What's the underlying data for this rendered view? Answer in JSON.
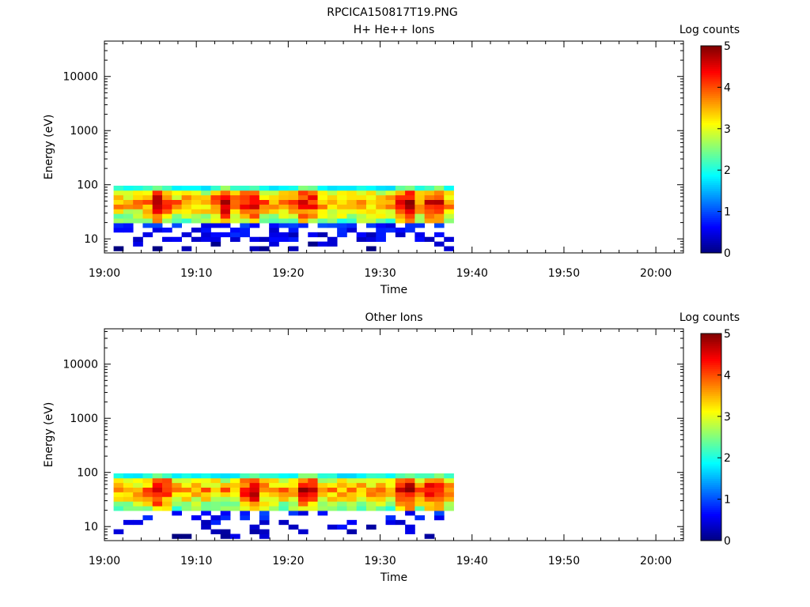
{
  "figure_title": "RPCICA150817T19.PNG",
  "chart_data": [
    {
      "type": "heatmap",
      "title": "H+ He++ Ions",
      "xlabel": "Time",
      "ylabel": "Energy (eV)",
      "x_ticks": [
        "19:00",
        "19:10",
        "19:20",
        "19:30",
        "19:40",
        "19:50",
        "20:00"
      ],
      "x_range": [
        "19:00",
        "20:03"
      ],
      "y_ticks": [
        "10",
        "100",
        "1000",
        "10000"
      ],
      "y_scale": "log",
      "y_range": [
        5.5,
        45000
      ],
      "data_time_range": [
        "19:01",
        "19:38"
      ],
      "data_energy_range": [
        6,
        96
      ],
      "colorbar": {
        "label": "Log counts",
        "ticks": [
          "0",
          "1",
          "2",
          "3",
          "4",
          "5"
        ],
        "range": [
          0,
          5
        ],
        "colormap": "jet"
      },
      "time_bins": 35,
      "energy_bins": 14,
      "peak_times": [
        "19:06",
        "19:13",
        "19:16",
        "19:22",
        "19:33",
        "19:36"
      ]
    },
    {
      "type": "heatmap",
      "title": "Other Ions",
      "xlabel": "Time",
      "ylabel": "Energy (eV)",
      "x_ticks": [
        "19:00",
        "19:10",
        "19:20",
        "19:30",
        "19:40",
        "19:50",
        "20:00"
      ],
      "x_range": [
        "19:00",
        "20:03"
      ],
      "y_ticks": [
        "10",
        "100",
        "1000",
        "10000"
      ],
      "y_scale": "log",
      "y_range": [
        5.5,
        45000
      ],
      "data_time_range": [
        "19:01",
        "19:38"
      ],
      "data_energy_range": [
        6,
        96
      ],
      "colorbar": {
        "label": "Log counts",
        "ticks": [
          "0",
          "1",
          "2",
          "3",
          "4",
          "5"
        ],
        "range": [
          0,
          5
        ],
        "colormap": "jet"
      },
      "time_bins": 35,
      "energy_bins": 14,
      "peak_times": [
        "19:06",
        "19:16",
        "19:22",
        "19:33",
        "19:36"
      ]
    }
  ]
}
